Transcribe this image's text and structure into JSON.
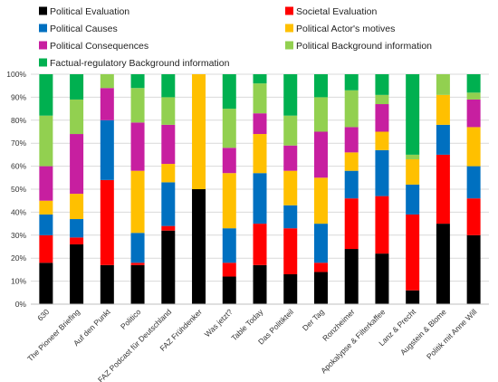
{
  "chart_data": {
    "type": "bar",
    "stacked": true,
    "normalized": true,
    "title": "",
    "xlabel": "",
    "ylabel": "",
    "ylim": [
      0,
      100
    ],
    "yticks": [
      "0%",
      "10%",
      "20%",
      "30%",
      "40%",
      "50%",
      "60%",
      "70%",
      "80%",
      "90%",
      "100%"
    ],
    "grid": true,
    "legend_position": "top",
    "categories": [
      "630",
      "The Pioneer Briefing",
      "Auf den Punkt",
      "Politico",
      "FAZ Podcast für Deutschland",
      "FAZ Frühdenker",
      "Was jetzt?",
      "Table Today",
      "Das Politikteil",
      "Der Tag",
      "Ronzheimer",
      "Apokalypse & Filterkaffee",
      "Lanz & Precht",
      "Augstein & Blome",
      "Politik mit Anne Will"
    ],
    "series": [
      {
        "name": "Political Evaluation",
        "color": "#000000",
        "values": [
          18,
          26,
          17,
          17,
          32,
          50,
          12,
          17,
          13,
          14,
          24,
          22,
          6,
          35,
          30
        ]
      },
      {
        "name": "Societal Evaluation",
        "color": "#ff0000",
        "values": [
          12,
          3,
          37,
          1,
          2,
          0,
          6,
          18,
          20,
          4,
          22,
          25,
          33,
          30,
          16
        ]
      },
      {
        "name": "Political Causes",
        "color": "#0070c0",
        "values": [
          9,
          8,
          26,
          13,
          19,
          0,
          15,
          22,
          10,
          17,
          12,
          20,
          13,
          13,
          14
        ]
      },
      {
        "name": "Political Actor's motives",
        "color": "#ffc000",
        "values": [
          6,
          11,
          0,
          27,
          8,
          50,
          24,
          17,
          15,
          20,
          8,
          8,
          11,
          13,
          17
        ]
      },
      {
        "name": "Political Consequences",
        "color": "#c71fa0",
        "values": [
          15,
          26,
          14,
          21,
          17,
          0,
          11,
          9,
          11,
          20,
          11,
          12,
          0,
          0,
          12
        ]
      },
      {
        "name": "Political Background information",
        "color": "#92d050",
        "values": [
          22,
          15,
          6,
          15,
          12,
          0,
          17,
          13,
          13,
          15,
          16,
          4,
          2,
          9,
          3
        ]
      },
      {
        "name": "Factual-regulatory Background information",
        "color": "#00b050",
        "values": [
          18,
          11,
          0,
          6,
          10,
          0,
          15,
          4,
          18,
          10,
          7,
          9,
          35,
          0,
          8
        ]
      }
    ]
  }
}
